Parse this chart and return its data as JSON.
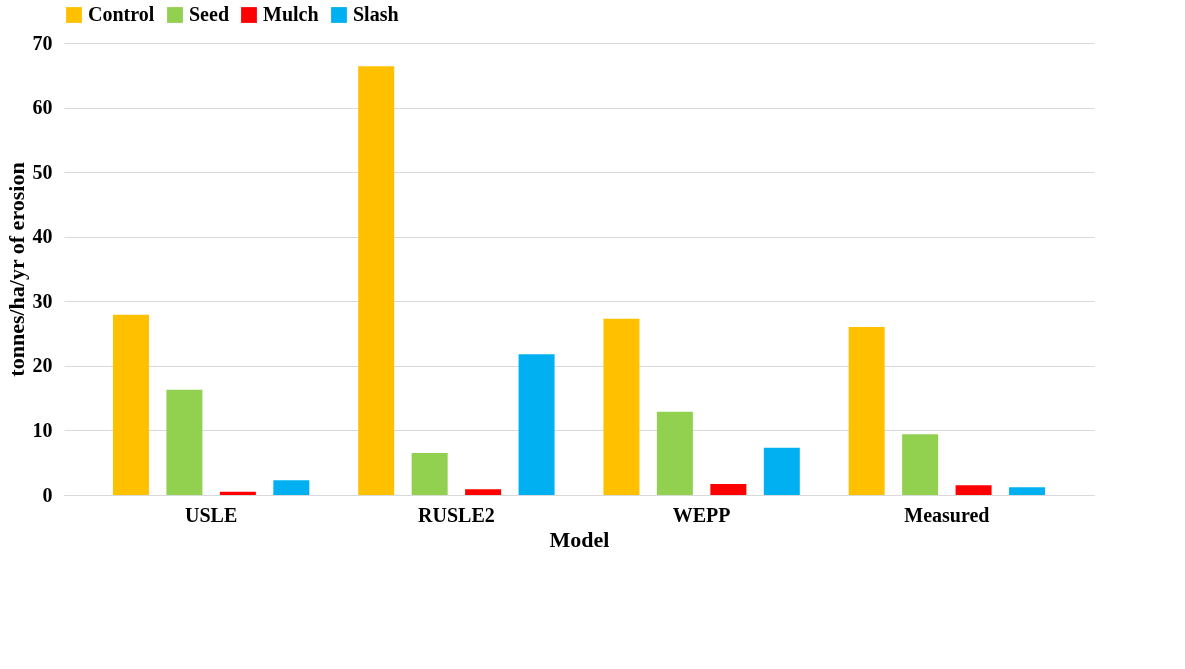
{
  "chart_data": {
    "type": "bar",
    "xlabel": "Model",
    "ylabel": "tonnes/ha/yr of erosion",
    "categories": [
      "USLE",
      "RUSLE2",
      "WEPP",
      "Measured"
    ],
    "series": [
      {
        "name": "Control",
        "color": "#ffc000",
        "values": [
          27.9,
          66.4,
          27.3,
          26.0
        ]
      },
      {
        "name": "Seed",
        "color": "#92d050",
        "values": [
          16.3,
          6.5,
          12.9,
          9.4
        ]
      },
      {
        "name": "Mulch",
        "color": "#ff0000",
        "values": [
          0.5,
          0.9,
          1.7,
          1.5
        ]
      },
      {
        "name": "Slash",
        "color": "#00b0f0",
        "values": [
          2.3,
          21.8,
          7.3,
          1.2
        ]
      }
    ],
    "ylim": [
      0,
      70
    ],
    "yticks": [
      0,
      10,
      20,
      30,
      40,
      50,
      60,
      70
    ],
    "grid": "y",
    "legend": "top"
  }
}
